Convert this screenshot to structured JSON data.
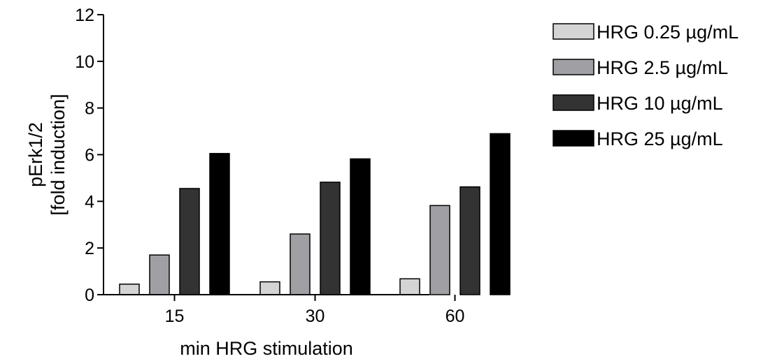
{
  "chart_data": {
    "type": "bar",
    "categories": [
      "15",
      "30",
      "60"
    ],
    "series": [
      {
        "name": "HRG 0.25 µg/mL",
        "color": "#d4d4d4",
        "values": [
          0.45,
          0.55,
          0.68
        ]
      },
      {
        "name": "HRG 2.5 µg/mL",
        "color": "#a0a0a4",
        "values": [
          1.7,
          2.6,
          3.82
        ]
      },
      {
        "name": "HRG 10 µg/mL",
        "color": "#333333",
        "values": [
          4.55,
          4.82,
          4.62
        ]
      },
      {
        "name": "HRG 25 µg/mL",
        "color": "#000000",
        "values": [
          6.05,
          5.82,
          6.9
        ]
      }
    ],
    "xlabel": "min HRG stimulation",
    "ylabel_lines": [
      "pErk1/2",
      "[fold induction]"
    ],
    "ylim": [
      0,
      12
    ],
    "yticks": [
      0,
      2,
      4,
      6,
      8,
      10,
      12
    ],
    "grid": false,
    "legend_position": "top-right"
  }
}
